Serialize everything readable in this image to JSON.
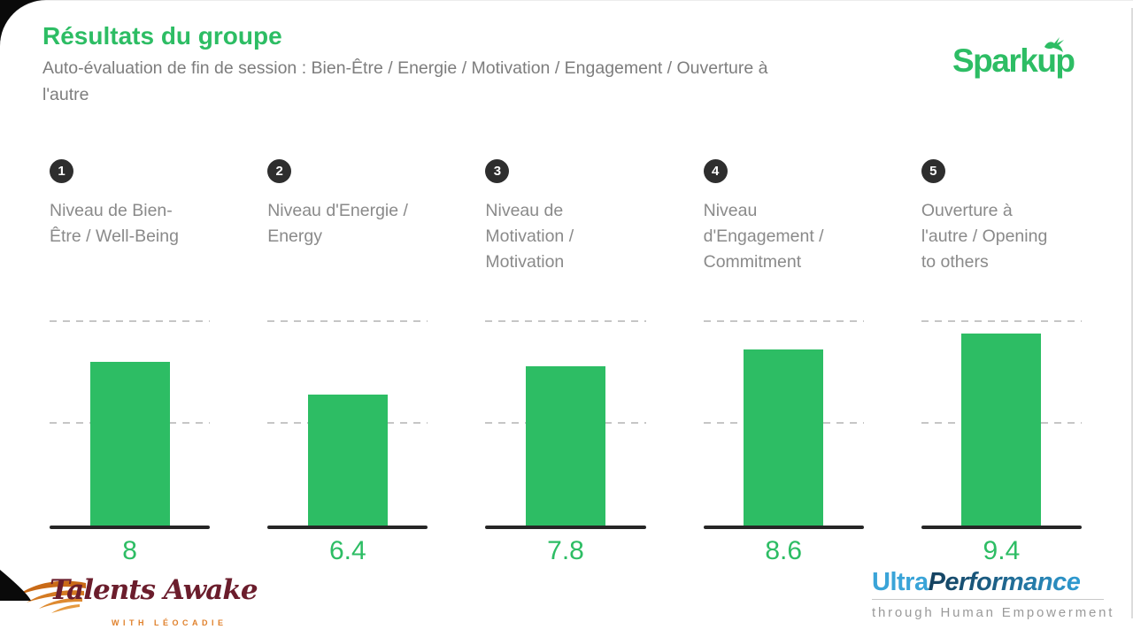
{
  "header": {
    "title": "Résultats du groupe",
    "subtitle": "Auto-évaluation de fin de session : Bien-Être / Energie / Motivation / Engagement / Ouverture à l'autre"
  },
  "brand": {
    "name": "Sparkup",
    "color": "#2dbd64"
  },
  "chart_data": {
    "type": "bar",
    "title": "Résultats du groupe",
    "subtitle": "Auto-évaluation de fin de session : Bien-Être / Energie / Motivation / Engagement / Ouverture à l'autre",
    "categories": [
      "Niveau de Bien-Être / Well-Being",
      "Niveau d'Energie / Energy",
      "Niveau de Motivation / Motivation",
      "Niveau d'Engagement / Commitment",
      "Ouverture à l'autre / Opening to others"
    ],
    "values": [
      8,
      6.4,
      7.8,
      8.6,
      9.4
    ],
    "ylim": [
      0,
      10
    ],
    "gridlines": [
      5,
      10
    ],
    "grid_style": "dashed",
    "legend": "none",
    "bar_color": "#2dbd64",
    "value_label_color": "#2dbd64",
    "value_label_position": "below-baseline"
  },
  "columns": [
    {
      "num": "1"
    },
    {
      "num": "2"
    },
    {
      "num": "3"
    },
    {
      "num": "4"
    },
    {
      "num": "5"
    }
  ],
  "footer": {
    "talents_awake": {
      "name": "Talents Awake",
      "tagline": "WITH LÉOCADIE",
      "text_color": "#6b1d2c",
      "accent_color": "#e0812c"
    },
    "ultra_performance": {
      "part1": "Ultra",
      "part2": "Performance",
      "tagline": "through Human Empowerment",
      "part1_color": "#3aa4d8"
    }
  },
  "icons": {
    "sparkup_bird": "bird-icon",
    "talents_wing": "wing-icon"
  }
}
